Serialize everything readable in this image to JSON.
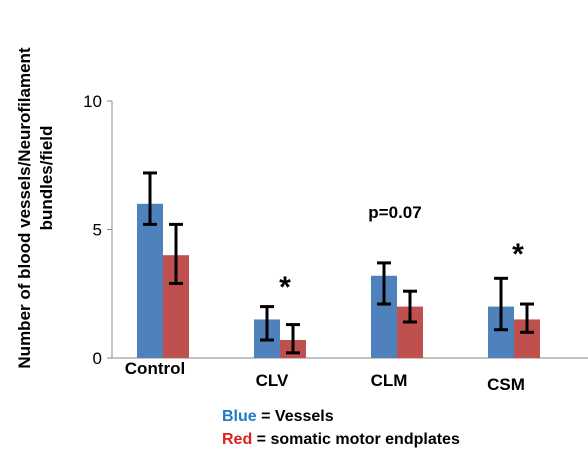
{
  "chart_data": {
    "type": "bar",
    "ylabel_lines": [
      "Number of blood vessels/Neurofilament",
      "bundles/field"
    ],
    "xlabel": "",
    "ylim": [
      0,
      10
    ],
    "yticks": [
      "0",
      "5",
      "10"
    ],
    "grid": false,
    "categories": [
      "Control",
      "CLV",
      "CLM",
      "CSM"
    ],
    "series": [
      {
        "name": "Vessels",
        "color": "#4F81BD",
        "values": [
          6.0,
          1.5,
          3.2,
          2.0
        ],
        "err_low": [
          5.2,
          0.7,
          2.1,
          1.1
        ],
        "err_high": [
          7.2,
          2.0,
          3.7,
          3.1
        ]
      },
      {
        "name": "somatic motor endplates",
        "color": "#C0504D",
        "values": [
          4.0,
          0.7,
          2.0,
          1.5
        ],
        "err_low": [
          2.9,
          0.2,
          1.4,
          1.0
        ],
        "err_high": [
          5.2,
          1.3,
          2.6,
          2.1
        ]
      }
    ],
    "annotations": [
      {
        "text": "*",
        "category": "CLV"
      },
      {
        "text": "p=0.07",
        "category": "CLM"
      },
      {
        "text": "*",
        "category": "CSM"
      }
    ]
  },
  "legend": {
    "blue_word": "Blue",
    "blue_text": " = Vessels",
    "red_word": "Red",
    "red_text": " = somatic motor endplates",
    "blue_color": "#1F7AC8",
    "red_color": "#E0201C"
  }
}
